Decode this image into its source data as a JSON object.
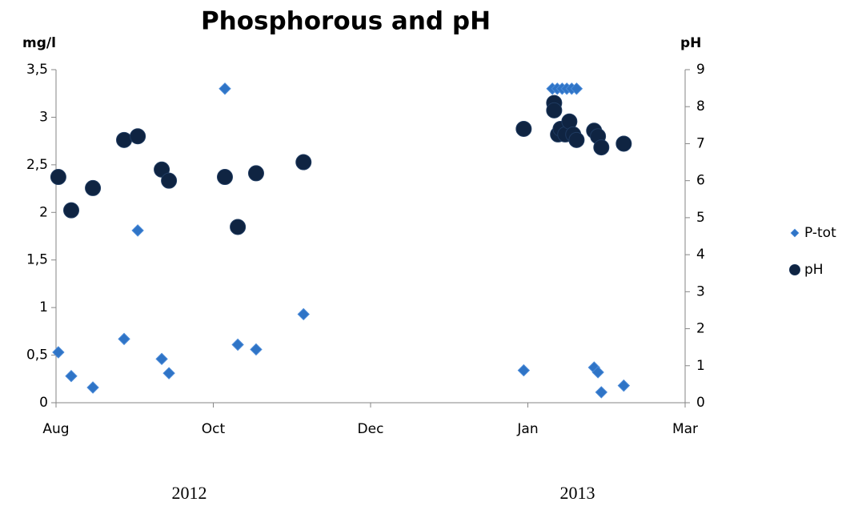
{
  "chart_data": {
    "type": "scatter",
    "title": "Phosphorous and pH",
    "y_label": "mg/l",
    "y2_label": "pH",
    "xlim": [
      0,
      244
    ],
    "xticks": [
      {
        "value": 0,
        "label": "Aug"
      },
      {
        "value": 61,
        "label": "Oct"
      },
      {
        "value": 122,
        "label": "Dec"
      },
      {
        "value": 183,
        "label": "Jan"
      },
      {
        "value": 244,
        "label": "Mar"
      }
    ],
    "x_group_labels": [
      "2012",
      "2013"
    ],
    "ylim": [
      0,
      3.5
    ],
    "yticks": [
      0,
      {
        "value": 0.5,
        "label": "0,5"
      },
      1,
      {
        "value": 1.5,
        "label": "1,5"
      },
      2,
      {
        "value": 2.5,
        "label": "2,5"
      },
      3,
      {
        "value": 3.5,
        "label": "3,5"
      }
    ],
    "y2lim": [
      0,
      9
    ],
    "y2ticks": [
      0,
      1,
      2,
      3,
      4,
      5,
      6,
      7,
      8,
      9
    ],
    "grid": false,
    "legend": "right",
    "series": [
      {
        "name": "P-tot",
        "color": "#2f74c6",
        "marker": "diamond",
        "x": [
          0.9,
          5.9,
          14.3,
          26.4,
          31.7,
          41,
          43.8,
          65.5,
          70.5,
          77.6,
          96,
          181.4,
          192.5,
          194.4,
          196.3,
          198.1,
          200,
          201.9,
          208.7,
          210.2,
          211.5,
          220.2
        ],
        "values": [
          0.53,
          0.28,
          0.16,
          0.67,
          1.81,
          0.46,
          0.31,
          3.3,
          0.61,
          0.56,
          0.93,
          0.34,
          3.3,
          3.3,
          3.3,
          3.3,
          3.3,
          3.3,
          0.37,
          0.32,
          0.11,
          0.18
        ]
      },
      {
        "name": "pH",
        "color": "#0f2442",
        "marker": "circle",
        "axis": "y2",
        "x": [
          0.9,
          5.9,
          14.3,
          26.4,
          31.7,
          41,
          43.8,
          65.5,
          70.5,
          77.6,
          96,
          181.4,
          193.2,
          193.2,
          194.7,
          195.7,
          197.5,
          199.1,
          200.6,
          201.9,
          208.7,
          210.2,
          211.5,
          220.2
        ],
        "values": [
          6.1,
          5.2,
          5.8,
          7.1,
          7.2,
          6.3,
          6.0,
          6.1,
          4.75,
          6.2,
          6.5,
          7.4,
          8.1,
          7.9,
          7.25,
          7.4,
          7.25,
          7.6,
          7.25,
          7.1,
          7.35,
          7.2,
          6.9,
          7.0
        ]
      }
    ]
  }
}
